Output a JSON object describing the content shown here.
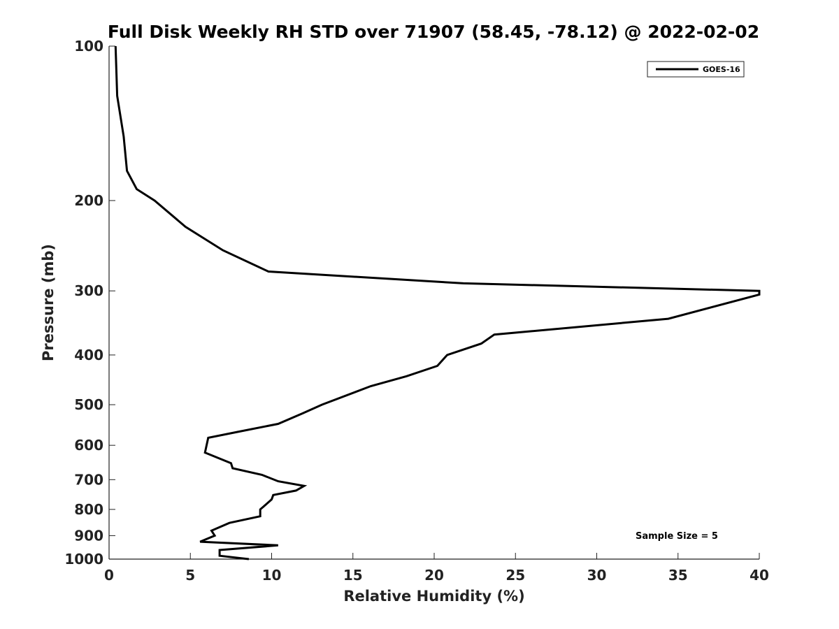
{
  "chart_data": {
    "type": "line",
    "title": "Full Disk Weekly RH STD over 71907 (58.45, -78.12) @ 2022-02-02",
    "xlabel": "Relative Humidity (%)",
    "ylabel": "Pressure (mb)",
    "xlim": [
      0,
      40
    ],
    "ylim": [
      100,
      1000
    ],
    "y_scale": "log",
    "y_inverted": true,
    "xticks": [
      0,
      5,
      10,
      15,
      20,
      25,
      30,
      35,
      40
    ],
    "yticks": [
      100,
      200,
      300,
      400,
      500,
      600,
      700,
      800,
      900,
      1000
    ],
    "grid": false,
    "legend_position": "top-right",
    "annotation": "Sample Size = 5",
    "series": [
      {
        "name": "GOES-16",
        "color": "#000000",
        "points": [
          [
            0.4,
            100
          ],
          [
            0.5,
            125
          ],
          [
            0.9,
            150
          ],
          [
            1.1,
            175
          ],
          [
            1.7,
            190
          ],
          [
            2.8,
            200
          ],
          [
            4.7,
            225
          ],
          [
            7.0,
            250
          ],
          [
            9.8,
            275
          ],
          [
            21.8,
            290
          ],
          [
            40.0,
            300
          ],
          [
            40.0,
            305
          ],
          [
            34.4,
            340
          ],
          [
            23.7,
            365
          ],
          [
            22.9,
            380
          ],
          [
            20.8,
            400
          ],
          [
            20.2,
            420
          ],
          [
            18.3,
            440
          ],
          [
            16.1,
            460
          ],
          [
            13.1,
            500
          ],
          [
            11.9,
            520
          ],
          [
            10.4,
            545
          ],
          [
            7.9,
            565
          ],
          [
            6.1,
            580
          ],
          [
            5.9,
            620
          ],
          [
            7.5,
            650
          ],
          [
            7.6,
            665
          ],
          [
            9.4,
            685
          ],
          [
            10.4,
            705
          ],
          [
            12.0,
            720
          ],
          [
            11.5,
            735
          ],
          [
            10.1,
            750
          ],
          [
            10.0,
            765
          ],
          [
            9.5,
            790
          ],
          [
            9.3,
            800
          ],
          [
            9.3,
            825
          ],
          [
            7.4,
            850
          ],
          [
            6.3,
            880
          ],
          [
            6.5,
            900
          ],
          [
            5.6,
            925
          ],
          [
            10.4,
            940
          ],
          [
            6.8,
            960
          ],
          [
            6.8,
            985
          ],
          [
            8.6,
            1000
          ]
        ]
      }
    ]
  }
}
